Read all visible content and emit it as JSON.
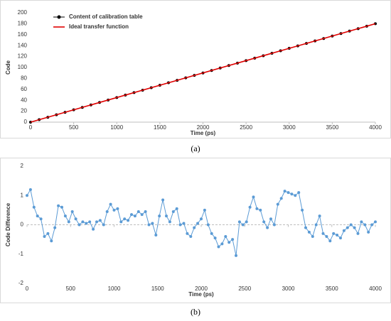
{
  "chart_data": [
    {
      "type": "scatter",
      "caption": "(a)",
      "xlabel": "Time (ps)",
      "ylabel": "Code",
      "xlim": [
        0,
        4000
      ],
      "xticks": [
        0,
        500,
        1000,
        1500,
        2000,
        2500,
        3000,
        3500,
        4000
      ],
      "ylim": [
        0,
        200
      ],
      "yticks": [
        0,
        20,
        40,
        60,
        80,
        100,
        120,
        140,
        160,
        180,
        200
      ],
      "grid": false,
      "legend": "upper left",
      "series": [
        {
          "name": "Content of calibration table",
          "type": "scatter",
          "color": "#000000",
          "x": [
            0,
            100,
            200,
            300,
            400,
            500,
            600,
            700,
            800,
            900,
            1000,
            1100,
            1200,
            1300,
            1400,
            1500,
            1600,
            1700,
            1800,
            1900,
            2000,
            2100,
            2200,
            2300,
            2400,
            2500,
            2600,
            2700,
            2800,
            2900,
            3000,
            3100,
            3200,
            3300,
            3400,
            3500,
            3600,
            3700,
            3800,
            3900,
            4000
          ],
          "values": [
            0,
            4.5,
            9,
            13.5,
            18,
            22.5,
            27,
            31.5,
            36,
            40.5,
            45,
            49.5,
            54,
            58.5,
            63,
            67.5,
            72,
            76.5,
            81,
            85.5,
            90,
            94.5,
            99,
            103.5,
            108,
            112.5,
            117,
            121.5,
            126,
            130.5,
            135,
            139.5,
            144,
            148.5,
            153,
            157.5,
            162,
            166.5,
            171,
            175.5,
            180
          ]
        },
        {
          "name": "Ideal transfer function",
          "type": "line",
          "color": "#e00000",
          "x": [
            0,
            4000
          ],
          "values": [
            0,
            180
          ]
        }
      ]
    },
    {
      "type": "line",
      "caption": "(b)",
      "xlabel": "Time (ps)",
      "ylabel": "Code Difference",
      "xlim": [
        0,
        4000
      ],
      "xticks": [
        0,
        500,
        1000,
        1500,
        2000,
        2500,
        3000,
        3500,
        4000
      ],
      "ylim": [
        -2,
        2
      ],
      "yticks": [
        -2,
        -1,
        0,
        1,
        2
      ],
      "grid": false,
      "series": [
        {
          "type": "line",
          "color": "#5b9bd5",
          "x": [
            0,
            40,
            80,
            120,
            160,
            200,
            240,
            280,
            320,
            360,
            400,
            440,
            480,
            520,
            560,
            600,
            640,
            680,
            720,
            760,
            800,
            840,
            880,
            920,
            960,
            1000,
            1040,
            1080,
            1120,
            1160,
            1200,
            1240,
            1280,
            1320,
            1360,
            1400,
            1440,
            1480,
            1520,
            1560,
            1600,
            1640,
            1680,
            1720,
            1760,
            1800,
            1840,
            1880,
            1920,
            1960,
            2000,
            2040,
            2080,
            2120,
            2160,
            2200,
            2240,
            2280,
            2320,
            2360,
            2400,
            2440,
            2480,
            2520,
            2560,
            2600,
            2640,
            2680,
            2720,
            2760,
            2800,
            2840,
            2880,
            2920,
            2960,
            3000,
            3040,
            3080,
            3120,
            3160,
            3200,
            3240,
            3280,
            3320,
            3360,
            3400,
            3440,
            3480,
            3520,
            3560,
            3600,
            3640,
            3680,
            3720,
            3760,
            3800,
            3840,
            3880,
            3920,
            3960,
            4000
          ],
          "values": [
            1.0,
            1.2,
            0.6,
            0.3,
            0.2,
            -0.4,
            -0.3,
            -0.55,
            -0.1,
            0.65,
            0.6,
            0.3,
            0.1,
            0.45,
            0.2,
            0.0,
            0.1,
            0.05,
            0.1,
            -0.15,
            0.1,
            0.15,
            0.0,
            0.45,
            0.7,
            0.5,
            0.55,
            0.1,
            0.2,
            0.15,
            0.35,
            0.3,
            0.45,
            0.35,
            0.45,
            0.0,
            0.05,
            -0.35,
            0.3,
            0.85,
            0.3,
            0.1,
            0.45,
            0.55,
            0.0,
            0.05,
            -0.3,
            -0.4,
            -0.1,
            0.05,
            0.2,
            0.5,
            0.0,
            -0.3,
            -0.45,
            -0.75,
            -0.65,
            -0.4,
            -0.6,
            -0.5,
            -1.05,
            0.1,
            0.0,
            0.1,
            0.6,
            0.95,
            0.55,
            0.5,
            0.1,
            -0.1,
            0.2,
            0.0,
            0.7,
            0.9,
            1.15,
            1.1,
            1.05,
            1.0,
            1.1,
            0.5,
            -0.1,
            -0.25,
            -0.4,
            0.0,
            0.3,
            -0.3,
            -0.4,
            -0.55,
            -0.3,
            -0.35,
            -0.45,
            -0.2,
            -0.1,
            0.0,
            -0.1,
            -0.3,
            0.1,
            0.0,
            -0.25,
            0.0,
            0.1
          ]
        }
      ]
    }
  ]
}
